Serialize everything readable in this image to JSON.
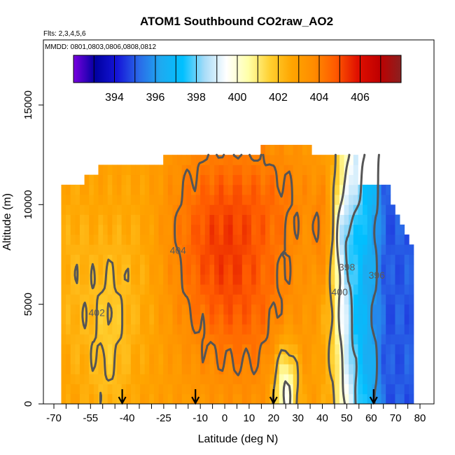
{
  "chart_data": {
    "type": "heatmap",
    "title": "ATOM1 Southbound CO2raw_AO2",
    "subtitle_flights": "Flts: 2,3,4,5,6",
    "subtitle_dates": "MMDD: 0801,0803,0806,0808,0812",
    "xlabel": "Latitude (deg N)",
    "ylabel": "Altitude (m)",
    "xlim": [
      -70,
      82
    ],
    "ylim": [
      0,
      17500
    ],
    "x_ticks": [
      -70,
      -55,
      -40,
      -25,
      -10,
      0,
      10,
      20,
      30,
      40,
      50,
      60,
      70,
      80
    ],
    "x_minor_ticks": [
      -65,
      -60,
      -50,
      -45,
      -35,
      -30,
      -20,
      -15,
      -5,
      5,
      15,
      25,
      35,
      45,
      55,
      65,
      75
    ],
    "y_ticks": [
      0,
      5000,
      10000,
      15000
    ],
    "colorbar": {
      "min": 392,
      "max": 408,
      "tick_labels": [
        394,
        396,
        398,
        400,
        402,
        404,
        406
      ],
      "stops": [
        "#7a00e0",
        "#0000a0",
        "#1515d8",
        "#2a6ae8",
        "#1eaaf0",
        "#00c0ff",
        "#a8dcf8",
        "#ffffff",
        "#ffffa8",
        "#ffd030",
        "#ffa500",
        "#ff8c00",
        "#ff5a00",
        "#e01000",
        "#c00000",
        "#8a2020"
      ]
    },
    "contour_levels_labeled": [
      396,
      398,
      400,
      402,
      404
    ],
    "flight_arrows_lat": [
      -42,
      -12,
      20,
      61
    ],
    "fields": {
      "bg": 403.0,
      "blobs": [
        {
          "lat": -5,
          "alt": 8500,
          "slat": 14,
          "salt": 3500,
          "amp": 1.6
        },
        {
          "lat": 10,
          "alt": 5000,
          "slat": 15,
          "salt": 3500,
          "amp": 1.2
        },
        {
          "lat": 20,
          "alt": 10500,
          "slat": 14,
          "salt": 2000,
          "amp": 0.8
        },
        {
          "lat": -35,
          "alt": 6500,
          "slat": 8,
          "salt": 4000,
          "amp": -0.6
        },
        {
          "lat": -48,
          "alt": 3500,
          "slat": 6,
          "salt": 3500,
          "amp": -1.1
        },
        {
          "lat": -62,
          "alt": 6000,
          "slat": 6,
          "salt": 4000,
          "amp": -0.7
        },
        {
          "lat": 25,
          "alt": 600,
          "slat": 3.5,
          "salt": 1700,
          "amp": -3.6
        },
        {
          "lat": 40,
          "alt": 8500,
          "slat": 2.5,
          "salt": 2000,
          "amp": 1.2
        },
        {
          "lat": 47,
          "alt": 5500,
          "slat": 5,
          "salt": 5000,
          "amp": -1.5
        },
        {
          "lat": 49,
          "alt": 8500,
          "slat": 3,
          "salt": 1300,
          "amp": -1.5
        },
        {
          "lat": 55,
          "alt": 4500,
          "slat": 5,
          "salt": 4500,
          "amp": -1.5
        }
      ],
      "trend": {
        "start_lat": 44,
        "end_lat": 66,
        "drop": 8.0
      }
    }
  }
}
